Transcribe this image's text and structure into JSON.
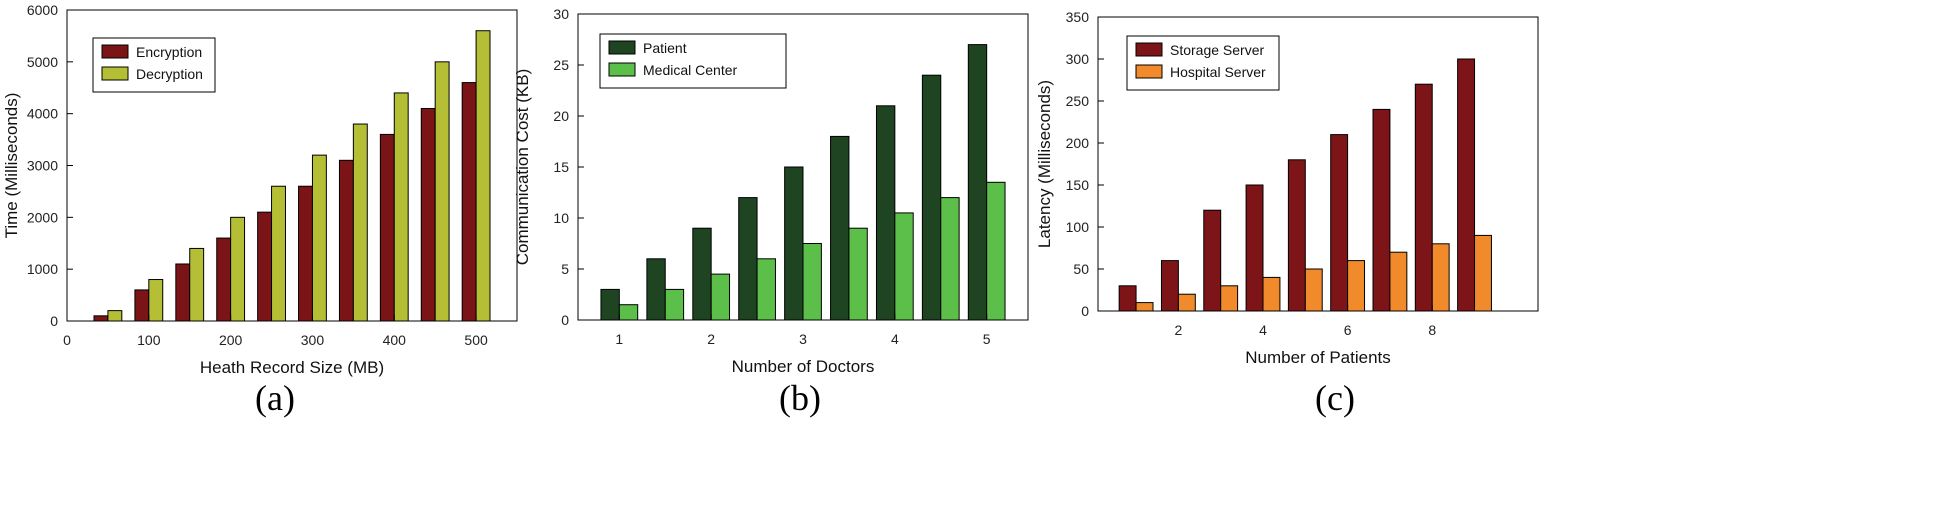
{
  "chart_data": [
    {
      "type": "bar",
      "caption": "(a)",
      "xlabel": "Heath Record Size (MB)",
      "ylabel": "Time (Milliseconds)",
      "xlim": [
        0,
        550
      ],
      "ylim": [
        0,
        6000
      ],
      "xticks": [
        0,
        100,
        200,
        300,
        400,
        500
      ],
      "yticks": [
        0,
        1000,
        2000,
        3000,
        4000,
        5000,
        6000
      ],
      "x": [
        50,
        100,
        150,
        200,
        250,
        300,
        350,
        400,
        450,
        500
      ],
      "bar_width": 17,
      "series": [
        {
          "name": "Encryption",
          "color": "#7b1416",
          "values": [
            100,
            600,
            1100,
            1600,
            2100,
            2600,
            3100,
            3600,
            4100,
            4600
          ]
        },
        {
          "name": "Decryption",
          "color": "#b5bf36",
          "values": [
            200,
            800,
            1400,
            2000,
            2600,
            3200,
            3800,
            4400,
            5000,
            5600
          ]
        }
      ],
      "legend": "top-left"
    },
    {
      "type": "bar",
      "caption": "(b)",
      "xlabel": "Number of Doctors",
      "ylabel": "Communication Cost (KB)",
      "xlim": [
        0.55,
        5.45
      ],
      "ylim": [
        0,
        30
      ],
      "xticks": [
        1,
        2,
        3,
        4,
        5
      ],
      "yticks": [
        0,
        5,
        10,
        15,
        20,
        25,
        30
      ],
      "x": [
        1,
        1.5,
        2,
        2.5,
        3,
        3.5,
        4,
        4.5,
        5
      ],
      "bar_width": 0.2,
      "series": [
        {
          "name": "Patient",
          "color": "#1e4422",
          "values": [
            3,
            6,
            9,
            12,
            15,
            18,
            21,
            24,
            27
          ]
        },
        {
          "name": "Medical Center",
          "color": "#5bbf4a",
          "values": [
            1.5,
            3,
            4.5,
            6,
            7.5,
            9,
            10.5,
            12,
            13.5
          ]
        }
      ],
      "legend": "top-left"
    },
    {
      "type": "bar",
      "caption": "(c)",
      "xlabel": "Number of Patients",
      "ylabel": "Latency (Milliseconds)",
      "xlim": [
        0.1,
        10.5
      ],
      "ylim": [
        0,
        350
      ],
      "xticks": [
        2,
        4,
        6,
        8
      ],
      "yticks": [
        0,
        50,
        100,
        150,
        200,
        250,
        300,
        350
      ],
      "x": [
        1,
        2,
        3,
        4,
        5,
        6,
        7,
        8,
        9
      ],
      "bar_width": 0.4,
      "series": [
        {
          "name": "Storage Server",
          "color": "#7d1518",
          "values": [
            30,
            60,
            120,
            150,
            180,
            210,
            240,
            270,
            300
          ]
        },
        {
          "name": "Hospital Server",
          "color": "#f08a2a",
          "values": [
            10,
            20,
            30,
            40,
            50,
            60,
            70,
            80,
            90
          ]
        }
      ],
      "legend": "top-left"
    }
  ]
}
